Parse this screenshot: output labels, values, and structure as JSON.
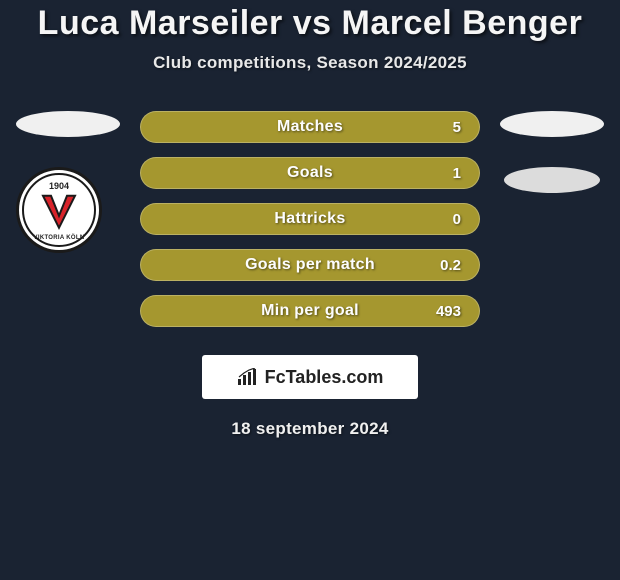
{
  "title": "Luca Marseiler vs Marcel Benger",
  "subtitle": "Club competitions, Season 2024/2025",
  "date": "18 september 2024",
  "brand": "FcTables.com",
  "badge": {
    "year": "1904",
    "bottom_text": "VIKTORIA KÖLN",
    "v_fill": "#d8232a",
    "v_stroke": "#1a1a1a"
  },
  "colors": {
    "background": "#1a2332",
    "bar_fill": "#a5972f",
    "bar_text": "#fdfdfd",
    "title_color": "#f5f5f5",
    "subtitle_color": "#e8e8e8",
    "ellipse_left": "#f0f0f0",
    "ellipse_right_top": "#f0f0f0",
    "ellipse_right_bottom": "#dcdcdc",
    "brand_bg": "#ffffff",
    "brand_text_color": "#222222"
  },
  "stats": [
    {
      "label": "Matches",
      "value": "5"
    },
    {
      "label": "Goals",
      "value": "1"
    },
    {
      "label": "Hattricks",
      "value": "0"
    },
    {
      "label": "Goals per match",
      "value": "0.2"
    },
    {
      "label": "Min per goal",
      "value": "493"
    }
  ]
}
